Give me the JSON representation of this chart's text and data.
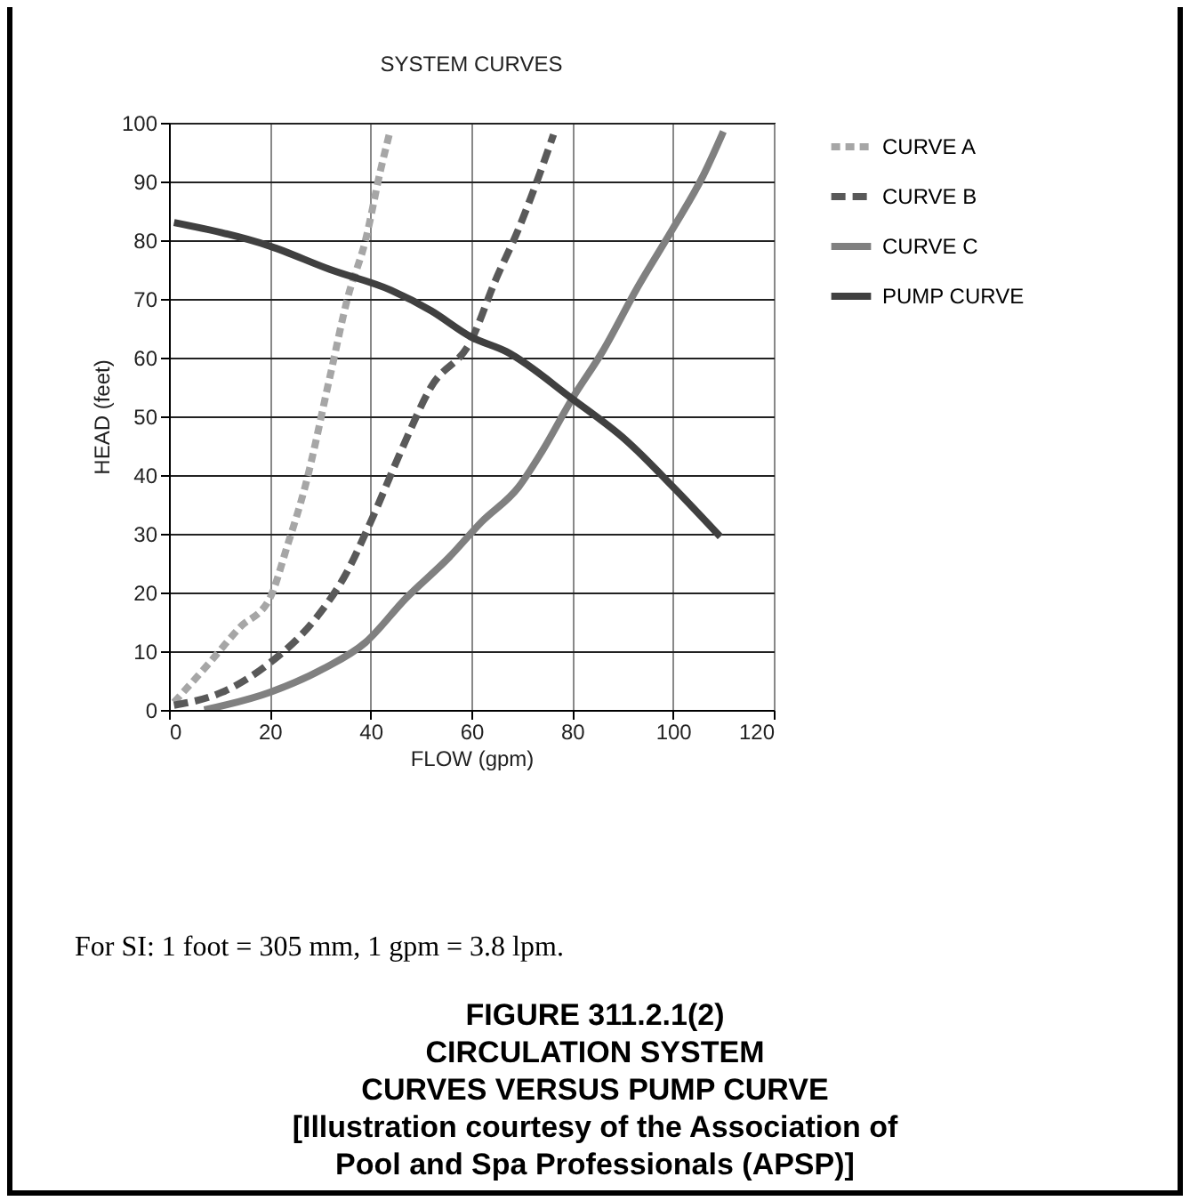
{
  "chart_data": {
    "type": "line",
    "title": "SYSTEM CURVES",
    "xlabel": "FLOW (gpm)",
    "ylabel": "HEAD (feet)",
    "xlim": [
      0,
      120
    ],
    "xticks": [
      0,
      20,
      40,
      60,
      80,
      100,
      120
    ],
    "ylim": [
      0,
      100
    ],
    "yticks": [
      0,
      10,
      20,
      30,
      40,
      50,
      60,
      70,
      80,
      90,
      100
    ],
    "grid": true,
    "legend": "right",
    "marker": "none",
    "series": [
      {
        "name": "CURVE A",
        "color": "#a6a6a6",
        "line_style": "dotted",
        "x": [
          1,
          8,
          14,
          20,
          23.5,
          27,
          32,
          35.4,
          39,
          42,
          43.7
        ],
        "values": [
          1.3,
          8,
          14,
          19,
          28,
          38,
          57,
          70,
          80,
          92,
          98
        ]
      },
      {
        "name": "CURVE B",
        "color": "#595959",
        "line_style": "dashed",
        "x": [
          1,
          10.5,
          20,
          29.5,
          35,
          40,
          46,
          52,
          60,
          64.7,
          69.4,
          73,
          76.3
        ],
        "values": [
          0.8,
          3,
          8,
          16,
          23,
          32,
          44,
          55,
          63,
          73,
          82,
          90,
          98
        ]
      },
      {
        "name": "CURVE C",
        "color": "#808080",
        "line_style": "solid",
        "x": [
          7,
          20,
          30.6,
          39,
          47,
          55.6,
          62,
          69.4,
          74,
          80,
          86,
          93,
          100,
          106,
          110
        ],
        "values": [
          0,
          3,
          7,
          11.5,
          19,
          26,
          32,
          38,
          44,
          53,
          61,
          72,
          82,
          91,
          98.5
        ]
      },
      {
        "name": "PUMP CURVE",
        "color": "#404040",
        "line_style": "solid",
        "x": [
          1,
          20,
          32,
          44,
          52,
          60,
          67,
          80,
          90.6,
          100,
          109.4
        ],
        "values": [
          83,
          79,
          75,
          71.5,
          68,
          63.5,
          61,
          53,
          46,
          38,
          29.5
        ]
      }
    ],
    "annotations": [
      "For SI: 1 foot = 305 mm, 1 gpm = 3.8 lpm.",
      "FIGURE 311.2.1(2)",
      "CIRCULATION SYSTEM",
      "CURVES VERSUS PUMP CURVE",
      "[Illustration courtesy of the Association of",
      "Pool and Spa Professionals (APSP)]"
    ]
  }
}
